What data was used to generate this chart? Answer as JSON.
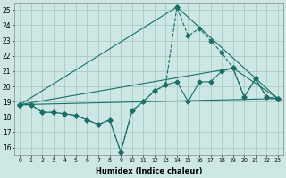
{
  "xlabel": "Humidex (Indice chaleur)",
  "xlim": [
    -0.5,
    23.5
  ],
  "ylim": [
    15.5,
    25.5
  ],
  "yticks": [
    16,
    17,
    18,
    19,
    20,
    21,
    22,
    23,
    24,
    25
  ],
  "xticks": [
    0,
    1,
    2,
    3,
    4,
    5,
    6,
    7,
    8,
    9,
    10,
    11,
    12,
    13,
    14,
    15,
    16,
    17,
    18,
    19,
    20,
    21,
    22,
    23
  ],
  "bg_color": "#cde8e4",
  "grid_color": "#b8d8d4",
  "line_color": "#1a6e68",
  "lines": [
    {
      "x": [
        0,
        1,
        2,
        3,
        4,
        5,
        6,
        7,
        8,
        9,
        10,
        11,
        12,
        13,
        14,
        15,
        16,
        17,
        18,
        19,
        20,
        21,
        22,
        23
      ],
      "y": [
        18.8,
        18.8,
        18.3,
        18.3,
        18.2,
        18.1,
        17.8,
        17.5,
        17.8,
        15.7,
        18.4,
        19.0,
        19.7,
        20.1,
        25.2,
        23.3,
        23.8,
        23.0,
        22.2,
        21.2,
        19.3,
        20.5,
        19.3,
        19.2
      ],
      "style": "--",
      "marker": "D",
      "markersize": 2.5
    },
    {
      "x": [
        0,
        1,
        2,
        3,
        4,
        5,
        6,
        7,
        8,
        9,
        10,
        11,
        12,
        13,
        14,
        15,
        16,
        17,
        18,
        19,
        20,
        21,
        22,
        23
      ],
      "y": [
        18.8,
        18.8,
        18.3,
        18.3,
        18.2,
        18.1,
        17.8,
        17.5,
        17.8,
        15.7,
        18.4,
        19.0,
        19.7,
        20.1,
        20.3,
        19.0,
        20.3,
        20.3,
        21.0,
        21.2,
        19.3,
        20.5,
        19.3,
        19.2
      ],
      "style": "-",
      "marker": "D",
      "markersize": 2.5
    },
    {
      "x": [
        0,
        23
      ],
      "y": [
        18.8,
        19.2
      ],
      "style": "-",
      "marker": "D",
      "markersize": 2.5
    },
    {
      "x": [
        0,
        19,
        23
      ],
      "y": [
        18.8,
        21.2,
        19.2
      ],
      "style": "-",
      "marker": "D",
      "markersize": 2.5
    },
    {
      "x": [
        0,
        14,
        23
      ],
      "y": [
        18.8,
        25.2,
        19.2
      ],
      "style": "-",
      "marker": "D",
      "markersize": 2.5
    }
  ]
}
